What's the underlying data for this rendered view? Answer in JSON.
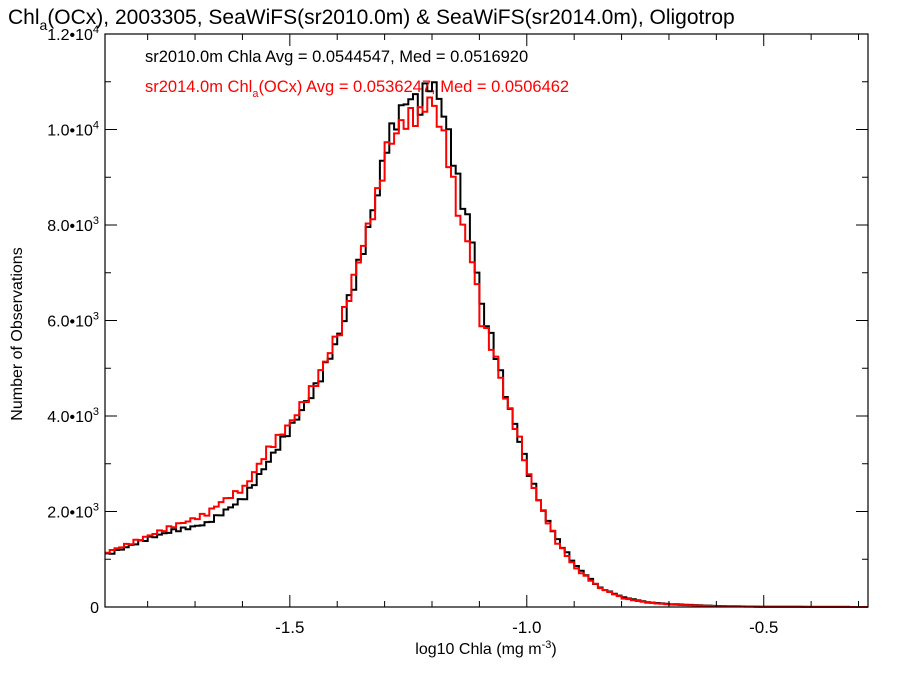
{
  "chart_data": {
    "type": "line",
    "title_parts": {
      "pre": "Chl",
      "sub": "a",
      "post": "(OCx), 2003305, SeaWiFS(sr2010.0m) & SeaWiFS(sr2014.0m), Oligotrop"
    },
    "xlabel_parts": {
      "pre": "log10 Chla (mg m",
      "sup": "-3",
      "post": ")"
    },
    "ylabel": "Number of Observations",
    "xlim": [
      -1.89,
      -0.28
    ],
    "ylim": [
      0,
      12000
    ],
    "x_ticks": [
      {
        "value": -1.5,
        "label": "-1.5"
      },
      {
        "value": -1.0,
        "label": "-1.0"
      },
      {
        "value": -0.5,
        "label": "-0.5"
      }
    ],
    "y_ticks": [
      {
        "value": 0,
        "mant": "0",
        "exp": ""
      },
      {
        "value": 2000,
        "mant": "2.0•10",
        "exp": "3"
      },
      {
        "value": 4000,
        "mant": "4.0•10",
        "exp": "3"
      },
      {
        "value": 6000,
        "mant": "6.0•10",
        "exp": "3"
      },
      {
        "value": 8000,
        "mant": "8.0•10",
        "exp": "3"
      },
      {
        "value": 10000,
        "mant": "1.0•10",
        "exp": "4"
      },
      {
        "value": 12000,
        "mant": "1.2•10",
        "exp": "4"
      }
    ],
    "x_minor_step": 0.1,
    "y_minor_step": 1000,
    "grid": false,
    "step_width": 0.01,
    "annotations": [
      {
        "color": "#000000",
        "pre": "sr2010.0m Chla Avg = 0.0544547, Med = 0.0516920",
        "sub": "",
        "post": ""
      },
      {
        "color": "#ff0000",
        "pre": "sr2014.0m Chl",
        "sub": "a",
        "post": "(OCx) Avg = 0.0536247, Med = 0.0506462"
      }
    ],
    "series": [
      {
        "color": "#000000",
        "points": [
          [
            -1.89,
            1100
          ],
          [
            -1.85,
            1250
          ],
          [
            -1.8,
            1450
          ],
          [
            -1.75,
            1600
          ],
          [
            -1.72,
            1650
          ],
          [
            -1.68,
            1750
          ],
          [
            -1.65,
            1950
          ],
          [
            -1.6,
            2300
          ],
          [
            -1.55,
            3050
          ],
          [
            -1.5,
            3800
          ],
          [
            -1.45,
            4600
          ],
          [
            -1.4,
            5700
          ],
          [
            -1.35,
            7500
          ],
          [
            -1.32,
            8700
          ],
          [
            -1.3,
            9700
          ],
          [
            -1.27,
            10400
          ],
          [
            -1.25,
            10700
          ],
          [
            -1.23,
            10500
          ],
          [
            -1.21,
            11000
          ],
          [
            -1.19,
            10700
          ],
          [
            -1.17,
            9900
          ],
          [
            -1.15,
            8900
          ],
          [
            -1.12,
            7700
          ],
          [
            -1.1,
            6300
          ],
          [
            -1.07,
            5300
          ],
          [
            -1.05,
            4450
          ],
          [
            -1.02,
            3500
          ],
          [
            -1.0,
            2800
          ],
          [
            -0.97,
            2000
          ],
          [
            -0.94,
            1400
          ],
          [
            -0.9,
            850
          ],
          [
            -0.85,
            400
          ],
          [
            -0.8,
            200
          ],
          [
            -0.75,
            100
          ],
          [
            -0.7,
            60
          ],
          [
            -0.6,
            20
          ],
          [
            -0.5,
            5
          ],
          [
            -0.28,
            0
          ]
        ]
      },
      {
        "color": "#ff0000",
        "points": [
          [
            -1.89,
            1150
          ],
          [
            -1.85,
            1300
          ],
          [
            -1.8,
            1500
          ],
          [
            -1.75,
            1700
          ],
          [
            -1.72,
            1800
          ],
          [
            -1.68,
            1950
          ],
          [
            -1.65,
            2200
          ],
          [
            -1.6,
            2500
          ],
          [
            -1.55,
            3300
          ],
          [
            -1.5,
            3900
          ],
          [
            -1.45,
            4700
          ],
          [
            -1.4,
            5800
          ],
          [
            -1.35,
            7600
          ],
          [
            -1.32,
            8600
          ],
          [
            -1.3,
            9600
          ],
          [
            -1.27,
            10100
          ],
          [
            -1.25,
            10250
          ],
          [
            -1.23,
            10300
          ],
          [
            -1.21,
            10650
          ],
          [
            -1.19,
            10200
          ],
          [
            -1.17,
            9400
          ],
          [
            -1.15,
            8300
          ],
          [
            -1.12,
            7300
          ],
          [
            -1.1,
            6000
          ],
          [
            -1.07,
            5200
          ],
          [
            -1.05,
            4400
          ],
          [
            -1.02,
            3500
          ],
          [
            -1.0,
            2750
          ],
          [
            -0.97,
            2000
          ],
          [
            -0.94,
            1350
          ],
          [
            -0.9,
            800
          ],
          [
            -0.85,
            400
          ],
          [
            -0.8,
            180
          ],
          [
            -0.75,
            90
          ],
          [
            -0.7,
            50
          ],
          [
            -0.6,
            15
          ],
          [
            -0.5,
            5
          ],
          [
            -0.28,
            0
          ]
        ]
      }
    ]
  }
}
